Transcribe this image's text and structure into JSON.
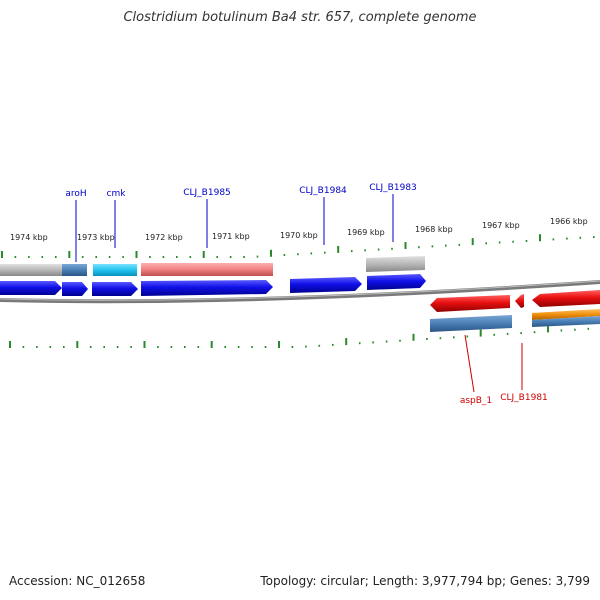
{
  "title": "Clostridium botulinum Ba4 str. 657, complete genome",
  "footer": {
    "accession": "Accession: NC_012658",
    "stats": "Topology: circular; Length: 3,977,794 bp; Genes: 3,799"
  },
  "kbp_labels": [
    "1974 kbp",
    "1973 kbp",
    "1972 kbp",
    "1971 kbp",
    "1970 kbp",
    "1969 kbp",
    "1968 kbp",
    "1967 kbp",
    "1966 kbp"
  ],
  "gene_labels": {
    "forward": [
      "aroH",
      "cmk",
      "CLJ_B1985",
      "CLJ_B1984",
      "CLJ_B1983"
    ],
    "reverse": [
      "aspB_1",
      "CLJ_B1981"
    ]
  },
  "colors": {
    "forward_label": "#0000cc",
    "reverse_label": "#cc0000",
    "tick": "#2a8a2a",
    "blue": "#1010e8",
    "red": "#e81010",
    "steelblue": "#4a7fb5",
    "cyan": "#22c4ee",
    "salmon": "#f08080",
    "grey": "#b8b8b8",
    "orange": "#f0900a"
  }
}
